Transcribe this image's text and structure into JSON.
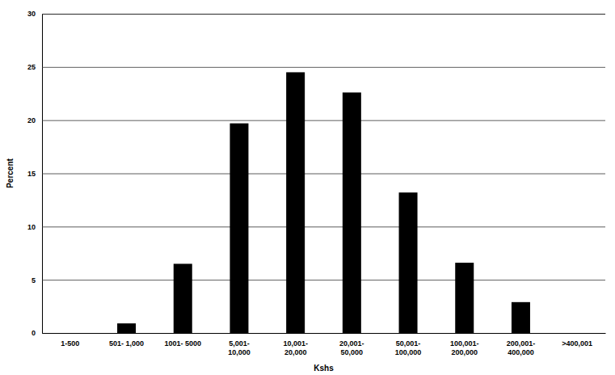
{
  "chart_data": {
    "type": "bar",
    "x_label": "Kshs",
    "y_label": "Percent",
    "categories": [
      "1-500",
      "501- 1,000",
      "1001- 5000",
      "5,001-10,000",
      "10,001-20,000",
      "20,001-50,000",
      "50,001-100,000",
      "100,001-200,000",
      "200,001-400,000",
      ">400,001"
    ],
    "values": [
      0,
      0.9,
      6.5,
      19.7,
      24.5,
      22.6,
      13.2,
      6.6,
      2.9,
      0
    ],
    "color": "#000000",
    "ylim": [
      0,
      30
    ],
    "yticks": [
      0,
      5,
      10,
      15,
      20,
      25,
      30
    ],
    "grid": true
  }
}
